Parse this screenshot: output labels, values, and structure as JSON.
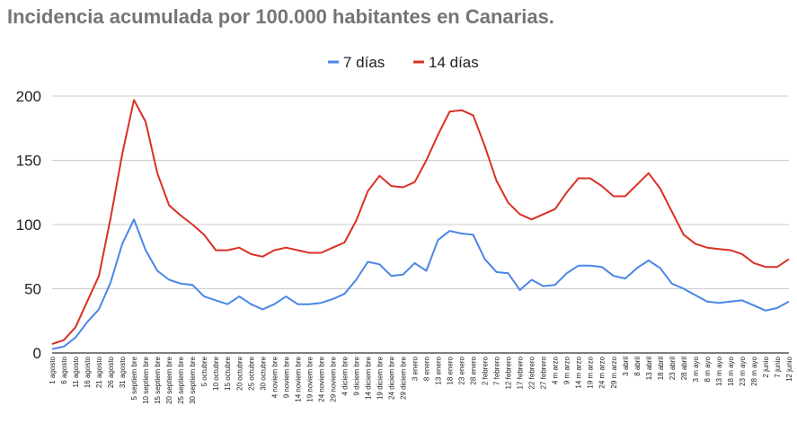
{
  "title": "Incidencia acumulada por 100.000 habitantes en Canarias.",
  "chart_data": {
    "type": "line",
    "title": "Incidencia acumulada por 100.000 habitantes en Canarias.",
    "xlabel": "",
    "ylabel": "",
    "ylim": [
      0,
      200
    ],
    "yticks": [
      0,
      50,
      100,
      150,
      200
    ],
    "legend_position": "top",
    "grid": true,
    "x": [
      "1 agosto",
      "6 agosto",
      "11 agosto",
      "16 agosto",
      "21 agosto",
      "26 agosto",
      "31 agosto",
      "5 septiembre",
      "10 septiembre",
      "15 septiembre",
      "20 septiembre",
      "25 septiembre",
      "30 septiembre",
      "5 octubre",
      "10 octubre",
      "15 octubre",
      "20 octubre",
      "25 octubre",
      "30 octubre",
      "4 noviembre",
      "9 noviembre",
      "14 noviembre",
      "19 noviembre",
      "24 noviembre",
      "29 noviembre",
      "4 diciembre",
      "9 diciembre",
      "14 diciembre",
      "19 diciembre",
      "24 diciembre",
      "29 diciembre",
      "3 enero",
      "8 enero",
      "13 enero",
      "18 enero",
      "23 enero",
      "28 enero",
      "2 febrero",
      "7 febrero",
      "12 febrero",
      "17 febrero",
      "22 febrero",
      "27 febrero",
      "4 marzo",
      "9 marzo",
      "14 marzo",
      "19 marzo",
      "24 marzo",
      "29 marzo",
      "3 abril",
      "8 abril",
      "13 abril",
      "18 abril",
      "23 abril",
      "28 abril",
      "3 mayo",
      "8 mayo",
      "13 mayo",
      "18 mayo",
      "23 mayo",
      "28 mayo",
      "2 junio",
      "7 junio",
      "12 junio"
    ],
    "x_tick_labels": [
      "1 agosto",
      "6 agosto",
      "11 agosto",
      "16 agosto",
      "21 agosto",
      "26 agosto",
      "31 agosto",
      "5 septiem bre",
      "10 septiem bre",
      "15 septiem bre",
      "20 septiem bre",
      "25 septiem bre",
      "30 septiem bre",
      "5 octubre",
      "10 octubre",
      "15 octubre",
      "20 octubre",
      "25 octubre",
      "30 octubre",
      "4 noviem bre",
      "9 noviem bre",
      "14 noviem bre",
      "19 noviem bre",
      "24 noviem bre",
      "29 noviem bre",
      "4 diciem bre",
      "9 diciem bre",
      "14 diciem bre",
      "19 diciem bre",
      "24 diciem bre",
      "29 diciem bre",
      "3 enero",
      "8 enero",
      "13 enero",
      "18 enero",
      "23 enero",
      "28 enero",
      "2 febrero",
      "7 febrero",
      "12 febrero",
      "17 febrero",
      "22 febrero",
      "27 febrero",
      "4 m arzo",
      "9 m arzo",
      "14 m arzo",
      "19 m arzo",
      "24 m arzo",
      "29 m arzo",
      "3 abril",
      "8 abril",
      "13 abril",
      "18 abril",
      "23 abril",
      "28 abril",
      "3 m ayo",
      "8 m ayo",
      "13 m ayo",
      "18 m ayo",
      "23 m ayo",
      "28 m ayo",
      "2 junio",
      "7 junio",
      "12 junio"
    ],
    "series": [
      {
        "name": "7 días",
        "color": "#4a86e8",
        "values": [
          3,
          5,
          12,
          24,
          34,
          55,
          85,
          104,
          80,
          64,
          57,
          54,
          53,
          44,
          41,
          38,
          44,
          38,
          34,
          38,
          44,
          38,
          38,
          39,
          42,
          46,
          57,
          71,
          69,
          60,
          61,
          70,
          64,
          88,
          95,
          93,
          92,
          73,
          63,
          62,
          49,
          57,
          52,
          53,
          62,
          68,
          68,
          67,
          60,
          58,
          66,
          72,
          66,
          54,
          50,
          45,
          40,
          39,
          40,
          41,
          37,
          33,
          35,
          40
        ]
      },
      {
        "name": "14 días",
        "color": "#d93025",
        "values": [
          7,
          10,
          20,
          40,
          60,
          105,
          155,
          197,
          180,
          140,
          115,
          107,
          100,
          92,
          80,
          80,
          82,
          77,
          75,
          80,
          82,
          80,
          78,
          78,
          82,
          86,
          103,
          126,
          138,
          130,
          129,
          133,
          150,
          170,
          188,
          189,
          185,
          161,
          134,
          117,
          108,
          104,
          108,
          112,
          125,
          136,
          136,
          130,
          122,
          122,
          131,
          140,
          128,
          110,
          92,
          85,
          82,
          81,
          80,
          77,
          70,
          67,
          67,
          73
        ]
      }
    ]
  }
}
